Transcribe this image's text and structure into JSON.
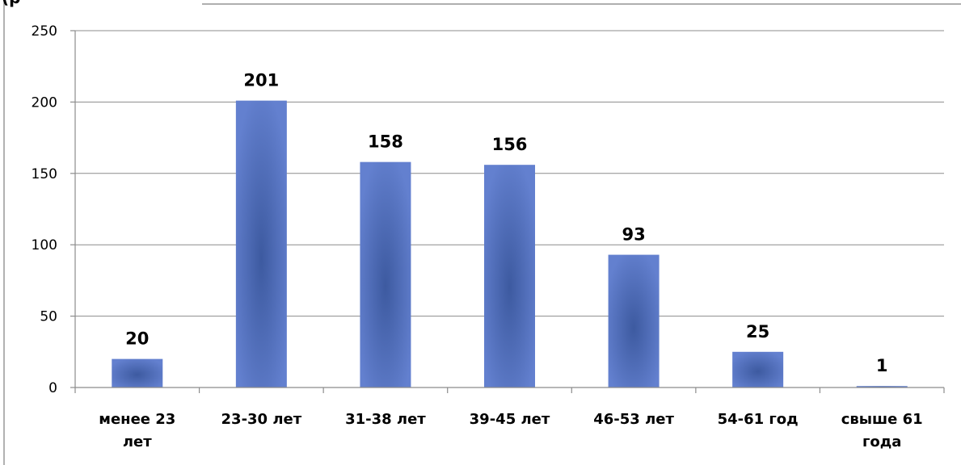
{
  "chart_data": {
    "type": "bar",
    "categories": [
      [
        "менее 23",
        "лет"
      ],
      [
        "23-30 лет"
      ],
      [
        "31-38 лет"
      ],
      [
        "39-45 лет"
      ],
      [
        "46-53 лет"
      ],
      [
        "54-61 год"
      ],
      [
        "свыше 61",
        "года"
      ]
    ],
    "values": [
      20,
      201,
      158,
      156,
      93,
      25,
      1
    ],
    "data_labels": [
      "20",
      "201",
      "158",
      "156",
      "93",
      "25",
      "1"
    ],
    "ylim": [
      0,
      250
    ],
    "yticks": [
      0,
      50,
      100,
      150,
      200,
      250
    ],
    "grid": true,
    "legend": "none",
    "top_fragment": "(р",
    "colors": {
      "bar_center": "#4060a8",
      "bar_edge": "#6582d0",
      "grid": "#8c8c8c",
      "border": "#7f7f7f"
    }
  }
}
